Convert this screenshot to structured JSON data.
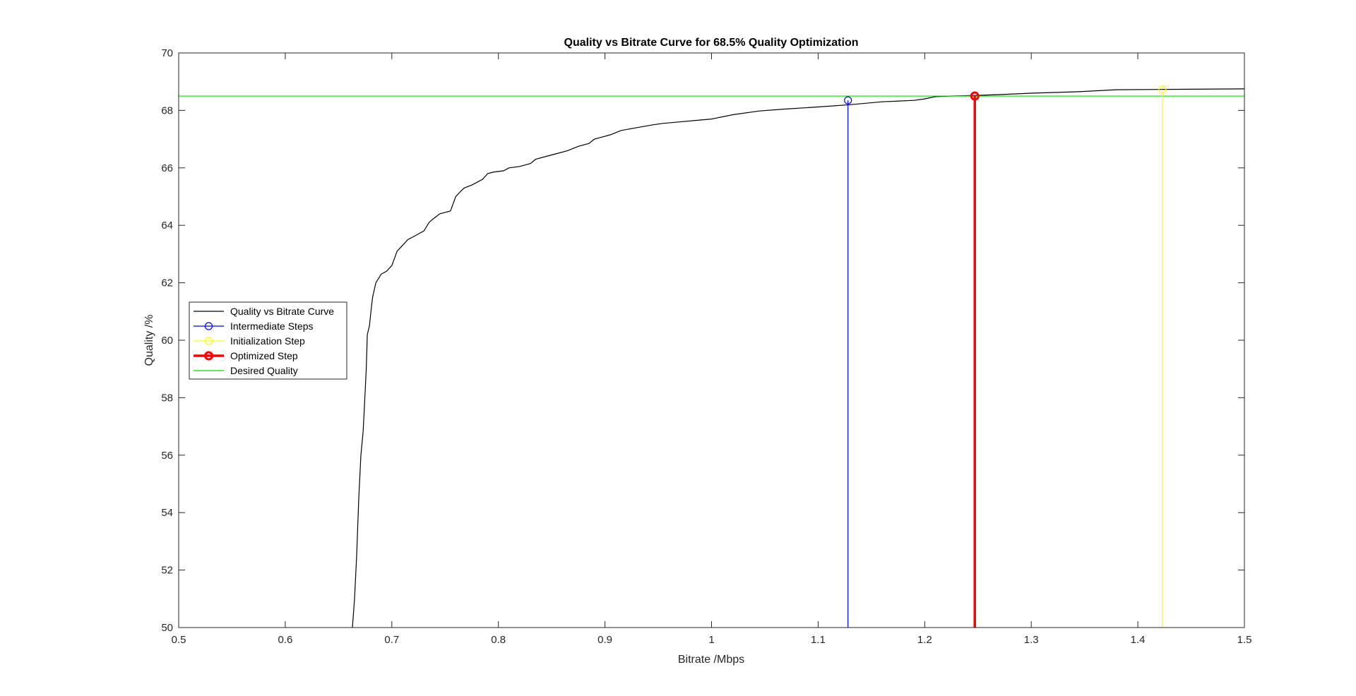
{
  "chart_data": {
    "type": "line",
    "title": "Quality vs Bitrate Curve for 68.5% Quality Optimization",
    "xlabel": "Bitrate /Mbps",
    "ylabel": "Quality /%",
    "xlim": [
      0.5,
      1.5
    ],
    "ylim": [
      50,
      70
    ],
    "xticks": [
      0.5,
      0.6,
      0.7,
      0.8,
      0.9,
      1,
      1.1,
      1.2,
      1.3,
      1.4,
      1.5
    ],
    "xtick_labels": [
      "0.5",
      "0.6",
      "0.7",
      "0.8",
      "0.9",
      "1",
      "1.1",
      "1.2",
      "1.3",
      "1.4",
      "1.5"
    ],
    "yticks": [
      50,
      52,
      54,
      56,
      58,
      60,
      62,
      64,
      66,
      68,
      70
    ],
    "ytick_labels": [
      "50",
      "52",
      "54",
      "56",
      "58",
      "60",
      "62",
      "64",
      "66",
      "68",
      "70"
    ],
    "grid": false,
    "legend_position": "middle-left",
    "series": [
      {
        "name": "Quality vs Bitrate Curve",
        "kind": "line",
        "color": "#000000",
        "x": [
          0.663,
          0.665,
          0.667,
          0.669,
          0.671,
          0.673,
          0.674,
          0.676,
          0.677,
          0.679,
          0.681,
          0.682,
          0.685,
          0.69,
          0.695,
          0.7,
          0.705,
          0.71,
          0.715,
          0.72,
          0.725,
          0.73,
          0.735,
          0.738,
          0.745,
          0.755,
          0.76,
          0.765,
          0.768,
          0.775,
          0.785,
          0.79,
          0.795,
          0.805,
          0.81,
          0.82,
          0.83,
          0.835,
          0.845,
          0.855,
          0.865,
          0.875,
          0.885,
          0.89,
          0.895,
          0.905,
          0.915,
          0.93,
          0.945,
          0.955,
          0.97,
          0.985,
          1.0,
          1.02,
          1.045,
          1.07,
          1.1,
          1.13,
          1.16,
          1.19,
          1.2,
          1.21,
          1.225,
          1.248,
          1.27,
          1.3,
          1.345,
          1.38,
          1.42,
          1.5
        ],
        "y": [
          50.0,
          51.0,
          52.5,
          54.5,
          56.0,
          56.8,
          57.5,
          59.0,
          60.2,
          60.5,
          61.2,
          61.5,
          62.0,
          62.3,
          62.4,
          62.6,
          63.1,
          63.3,
          63.5,
          63.6,
          63.7,
          63.8,
          64.1,
          64.2,
          64.4,
          64.5,
          65.0,
          65.2,
          65.3,
          65.4,
          65.6,
          65.8,
          65.85,
          65.9,
          66.0,
          66.05,
          66.15,
          66.3,
          66.4,
          66.5,
          66.6,
          66.75,
          66.85,
          67.0,
          67.05,
          67.15,
          67.3,
          67.4,
          67.5,
          67.55,
          67.6,
          67.65,
          67.7,
          67.85,
          67.98,
          68.05,
          68.12,
          68.2,
          68.3,
          68.35,
          68.4,
          68.48,
          68.5,
          68.52,
          68.55,
          68.6,
          68.65,
          68.72,
          68.73,
          68.75
        ]
      },
      {
        "name": "Intermediate Steps",
        "kind": "stem",
        "color": "#0000ff",
        "x": [
          1.128
        ],
        "y": [
          68.35
        ]
      },
      {
        "name": "Initialization Step",
        "kind": "stem",
        "color": "#ffff00",
        "x": [
          1.423
        ],
        "y": [
          68.72
        ]
      },
      {
        "name": "Optimized Step",
        "kind": "stem",
        "color": "#ff0000",
        "x": [
          1.247
        ],
        "y": [
          68.5
        ]
      },
      {
        "name": "Desired Quality",
        "kind": "hline",
        "color": "#00dd00",
        "y": 68.5
      }
    ]
  }
}
